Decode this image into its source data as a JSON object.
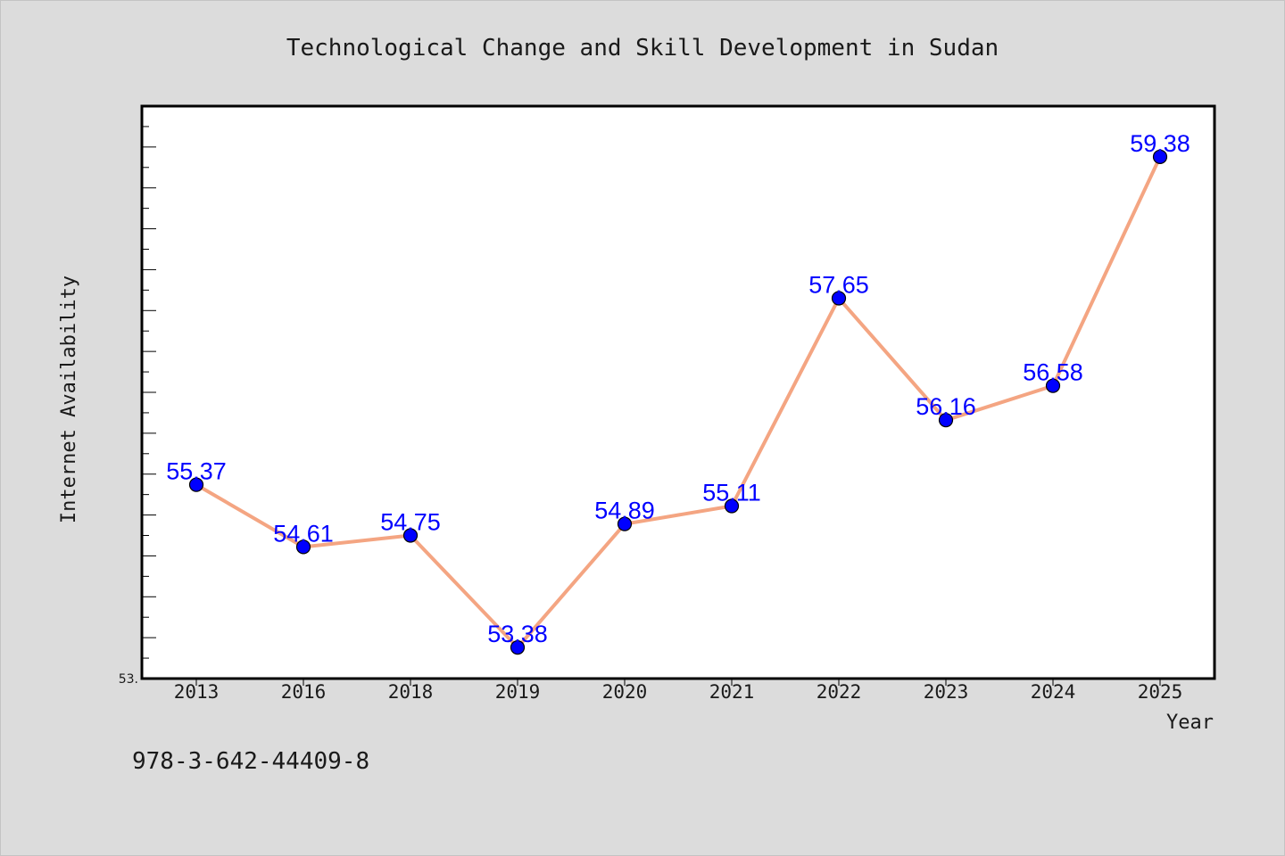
{
  "chart_data": {
    "type": "line",
    "title": "Technological Change and Skill Development in Sudan",
    "xlabel": "Year",
    "ylabel": "Internet Availability",
    "categories": [
      "2013",
      "2016",
      "2018",
      "2019",
      "2020",
      "2021",
      "2022",
      "2023",
      "2024",
      "2025"
    ],
    "series": [
      {
        "values": [
          55.37,
          54.61,
          54.75,
          53.38,
          54.89,
          55.11,
          57.65,
          56.16,
          56.58,
          59.38
        ],
        "labels": [
          "55.37",
          "54.61",
          "54.75",
          "53.38",
          "54.89",
          "55.11",
          "57.65",
          "56.16",
          "56.58",
          "59.38"
        ]
      }
    ],
    "ylim": [
      53.0,
      60.0
    ],
    "y_min_label": "53.",
    "line_color": "#f4a582",
    "marker_color": "#0000ff",
    "label_color": "#0000ff",
    "grid": false
  },
  "footer": {
    "isbn": "978-3-642-44409-8"
  },
  "colors": {
    "background": "#dcdcdc",
    "plot_area": "#ffffff",
    "axis": "#000000"
  }
}
